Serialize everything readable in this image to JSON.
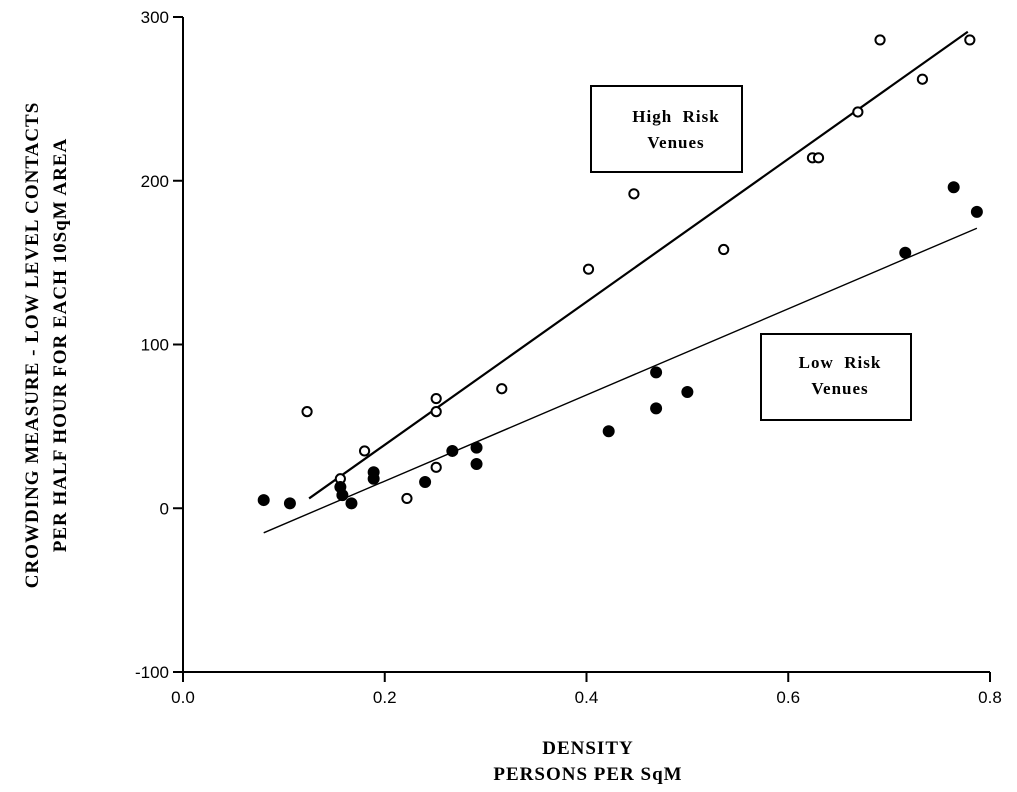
{
  "chart_data": {
    "type": "scatter",
    "xlabel": [
      "DENSITY",
      "PERSONS PER SqM"
    ],
    "ylabel": [
      "CROWDING MEASURE - LOW LEVEL CONTACTS",
      "PER HALF HOUR FOR EACH 10SqM AREA"
    ],
    "xlim": [
      0.0,
      0.8
    ],
    "ylim": [
      -100,
      300
    ],
    "xticks": [
      "0.0",
      "0.2",
      "0.4",
      "0.6",
      "0.8"
    ],
    "xtick_values": [
      0.0,
      0.2,
      0.4,
      0.6,
      0.8
    ],
    "yticks": [
      "-100",
      "0",
      "100",
      "200",
      "300"
    ],
    "ytick_values": [
      -100,
      0,
      100,
      200,
      300
    ],
    "grid": false,
    "series": [
      {
        "name": "High Risk Venues",
        "label_lines": [
          "High  Risk",
          "Venues"
        ],
        "marker": "open-circle",
        "points": [
          [
            0.123,
            59
          ],
          [
            0.156,
            18
          ],
          [
            0.18,
            35
          ],
          [
            0.222,
            6
          ],
          [
            0.251,
            67
          ],
          [
            0.251,
            59
          ],
          [
            0.251,
            25
          ],
          [
            0.316,
            73
          ],
          [
            0.402,
            146
          ],
          [
            0.447,
            192
          ],
          [
            0.536,
            158
          ],
          [
            0.624,
            214
          ],
          [
            0.63,
            214
          ],
          [
            0.669,
            242
          ],
          [
            0.691,
            286
          ],
          [
            0.733,
            262
          ],
          [
            0.78,
            286
          ]
        ],
        "fit_line": [
          [
            0.125,
            6
          ],
          [
            0.778,
            291
          ]
        ]
      },
      {
        "name": "Low Risk Venues",
        "label_lines": [
          "Low  Risk",
          "Venues"
        ],
        "marker": "filled-circle",
        "points": [
          [
            0.08,
            5
          ],
          [
            0.106,
            3
          ],
          [
            0.156,
            13
          ],
          [
            0.158,
            8
          ],
          [
            0.167,
            3
          ],
          [
            0.189,
            22
          ],
          [
            0.189,
            18
          ],
          [
            0.24,
            16
          ],
          [
            0.267,
            35
          ],
          [
            0.291,
            37
          ],
          [
            0.291,
            27
          ],
          [
            0.422,
            47
          ],
          [
            0.469,
            83
          ],
          [
            0.469,
            61
          ],
          [
            0.5,
            71
          ],
          [
            0.716,
            156
          ],
          [
            0.764,
            196
          ],
          [
            0.787,
            181
          ]
        ],
        "fit_line": [
          [
            0.08,
            -15
          ],
          [
            0.787,
            171
          ]
        ]
      }
    ]
  }
}
